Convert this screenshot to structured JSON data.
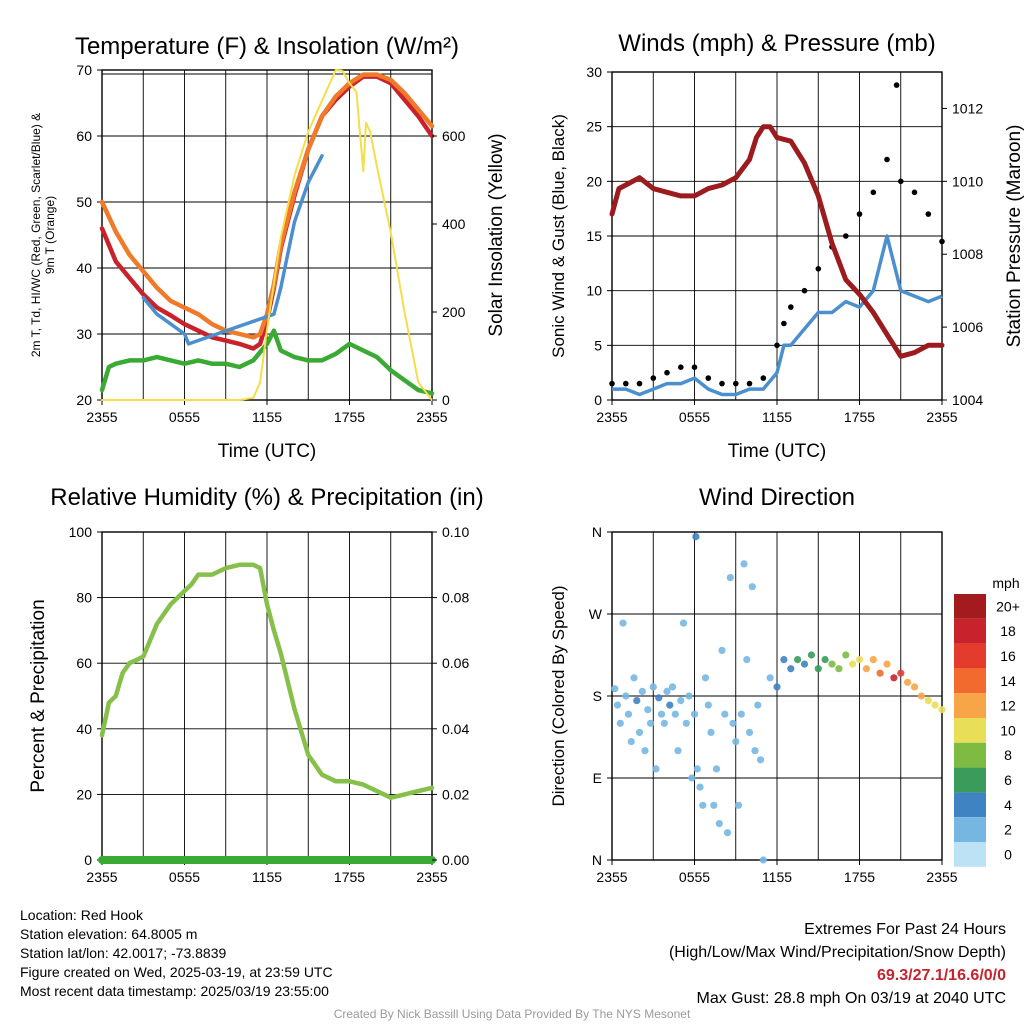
{
  "chart_data": [
    {
      "type": "line",
      "title": "Temperature (F) & Insolation (W/m²)",
      "xlabel": "Time (UTC)",
      "ylabel": "2m T, Td, HI/WC (Red, Green, Scarlet/Blue) & 9m T (Orange)",
      "y2label": "Solar Insolation (Yellow)",
      "x_ticks": [
        "2355",
        "0555",
        "1155",
        "1755",
        "2355"
      ],
      "ylim": [
        20,
        70
      ],
      "y_ticks": [
        "20",
        "30",
        "40",
        "50",
        "60",
        "70"
      ],
      "y2lim": [
        0,
        750
      ],
      "y2_ticks": [
        "0",
        "200",
        "400",
        "600"
      ],
      "x_hours_range": [
        0,
        24
      ],
      "series": [
        {
          "name": "2m T",
          "color": "#c8232c",
          "axis": "left",
          "x": [
            0,
            1,
            2,
            3,
            4,
            5,
            6,
            7,
            8,
            9,
            10,
            11,
            11.5,
            12,
            12.5,
            13,
            14,
            15,
            16,
            17,
            18,
            19,
            20,
            21,
            22,
            23,
            24
          ],
          "y": [
            46,
            41,
            38.5,
            36,
            34,
            32.8,
            31.5,
            30.5,
            29.5,
            29,
            28.5,
            27.8,
            28.5,
            32,
            37,
            43,
            51,
            58,
            63,
            65.5,
            67.5,
            69,
            69,
            68,
            65.5,
            63,
            60
          ]
        },
        {
          "name": "9m T",
          "color": "#f07a2a",
          "axis": "left",
          "x": [
            0,
            1,
            2,
            3,
            4,
            5,
            6,
            7,
            8,
            9,
            10,
            11,
            11.5,
            12,
            12.5,
            13,
            14,
            15,
            16,
            17,
            18,
            19,
            20,
            21,
            22,
            23,
            24
          ],
          "y": [
            50,
            45.5,
            42,
            39.5,
            37,
            35,
            34,
            33,
            31.5,
            30.5,
            30,
            29.5,
            30,
            33,
            37.5,
            43.5,
            51.5,
            58,
            63,
            66,
            68,
            69.3,
            69.3,
            68.5,
            66.5,
            64,
            61.5
          ]
        },
        {
          "name": "Td",
          "color": "#3aaa35",
          "axis": "left",
          "x": [
            0,
            0.5,
            1,
            2,
            3,
            4,
            5,
            6,
            7,
            8,
            9,
            10,
            11,
            12,
            12.5,
            13,
            14,
            15,
            16,
            17,
            18,
            19,
            20,
            21,
            22,
            23,
            24
          ],
          "y": [
            21.5,
            25,
            25.5,
            26,
            26,
            26.5,
            26,
            25.5,
            26,
            25.5,
            25.5,
            25,
            26,
            28.5,
            30.5,
            27.5,
            26.5,
            26,
            26,
            27,
            28.5,
            27.5,
            26.5,
            24.5,
            23,
            21.5,
            21
          ]
        },
        {
          "name": "HI/WC",
          "color": "#4b8fcf",
          "axis": "left",
          "x": [
            3,
            4,
            5,
            6,
            6.3,
            12.5,
            13,
            13.5,
            14,
            15,
            16
          ],
          "y": [
            35.5,
            33,
            31.5,
            30,
            28.5,
            33,
            37,
            42,
            47,
            53,
            57
          ]
        },
        {
          "name": "Solar Insolation",
          "color": "#f5dd4b",
          "axis": "right",
          "x": [
            0,
            10,
            11,
            11.5,
            12,
            13,
            14,
            15,
            16,
            16.5,
            17,
            17.5,
            18,
            18.5,
            19,
            19.2,
            19.5,
            20,
            21,
            22,
            23,
            24
          ],
          "y": [
            0,
            0,
            5,
            40,
            160,
            370,
            510,
            610,
            680,
            715,
            750,
            748,
            720,
            700,
            520,
            630,
            610,
            530,
            380,
            200,
            40,
            0
          ]
        }
      ]
    },
    {
      "type": "line",
      "title": "Winds (mph) & Pressure (mb)",
      "xlabel": "Time (UTC)",
      "ylabel": "Sonic Wind & Gust (Blue, Black)",
      "y2label": "Station Pressure (Maroon)",
      "x_ticks": [
        "2355",
        "0555",
        "1155",
        "1755",
        "2355"
      ],
      "ylim": [
        0,
        30
      ],
      "y_ticks": [
        "0",
        "5",
        "10",
        "15",
        "20",
        "25",
        "30"
      ],
      "y2lim": [
        1004,
        1013
      ],
      "y2_ticks": [
        "1004",
        "1006",
        "1008",
        "1010",
        "1012"
      ],
      "series": [
        {
          "name": "Sonic Wind",
          "color": "#4b8fcf",
          "axis": "left",
          "x": [
            0,
            1,
            2,
            3,
            4,
            5,
            6,
            7,
            8,
            9,
            10,
            11,
            12,
            12.5,
            13,
            14,
            15,
            16,
            17,
            18,
            19,
            20,
            21,
            22,
            23,
            24
          ],
          "y": [
            1,
            1,
            0.5,
            1,
            1.5,
            1.5,
            2,
            1,
            0.5,
            0.5,
            1,
            1,
            2.5,
            5,
            5,
            6.5,
            8,
            8,
            9,
            8.5,
            10,
            15,
            10,
            9.5,
            9,
            9.5
          ]
        },
        {
          "name": "Gust",
          "color": "#000000",
          "axis": "left",
          "x": [
            0,
            1,
            2,
            3,
            4,
            5,
            6,
            7,
            8,
            9,
            10,
            11,
            12,
            12.5,
            13,
            14,
            15,
            16,
            17,
            18,
            19,
            20,
            20.7,
            21,
            22,
            23,
            24
          ],
          "y": [
            1.5,
            1.5,
            1.5,
            2,
            2.5,
            3,
            3,
            2,
            1.5,
            1.5,
            1.5,
            2,
            5,
            7,
            8.5,
            10,
            12,
            14,
            15,
            17,
            19,
            22,
            28.8,
            20,
            19,
            17,
            14.5
          ]
        },
        {
          "name": "Station Pressure",
          "color": "#9b1b1e",
          "axis": "right",
          "x": [
            0,
            0.5,
            1,
            2,
            3,
            4,
            5,
            6,
            7,
            8,
            9,
            10,
            10.5,
            11,
            11.5,
            12,
            13,
            14,
            15,
            16,
            17,
            18,
            19,
            20,
            21,
            22,
            23,
            24
          ],
          "y": [
            1009.1,
            1009.8,
            1009.9,
            1010.1,
            1009.8,
            1009.7,
            1009.6,
            1009.6,
            1009.8,
            1009.9,
            1010.1,
            1010.6,
            1011.2,
            1011.5,
            1011.5,
            1011.2,
            1011.1,
            1010.5,
            1009.6,
            1008.3,
            1007.3,
            1006.9,
            1006.4,
            1005.8,
            1005.2,
            1005.3,
            1005.5,
            1005.5
          ]
        }
      ]
    },
    {
      "type": "line",
      "title": "Relative Humidity (%) & Precipitation (in)",
      "xlabel": "",
      "ylabel": "Percent & Precipitation",
      "x_ticks": [
        "2355",
        "0555",
        "1155",
        "1755",
        "2355"
      ],
      "ylim": [
        0,
        100
      ],
      "y_ticks": [
        "0",
        "20",
        "40",
        "60",
        "80",
        "100"
      ],
      "y2lim": [
        0,
        0.1
      ],
      "y2_ticks": [
        "0.00",
        "0.02",
        "0.04",
        "0.06",
        "0.08",
        "0.10"
      ],
      "series": [
        {
          "name": "Relative Humidity",
          "color": "#86c04a",
          "axis": "left",
          "x": [
            0,
            0.5,
            1,
            1.5,
            2,
            3,
            4,
            5,
            6,
            6.5,
            7,
            8,
            9,
            10,
            11,
            11.5,
            12,
            12.5,
            13,
            14,
            15,
            16,
            17,
            18,
            19,
            20,
            21,
            22,
            23,
            24
          ],
          "y": [
            38,
            48,
            50,
            57,
            60,
            62,
            72,
            78,
            82,
            84,
            87,
            87,
            89,
            90,
            90,
            89,
            78,
            70,
            63,
            46,
            32,
            26,
            24,
            24,
            23,
            21,
            19,
            20,
            21,
            22
          ]
        },
        {
          "name": "Precipitation",
          "color": "#3aaa35",
          "axis": "right",
          "x": [
            0,
            24
          ],
          "y": [
            0,
            0
          ]
        }
      ]
    },
    {
      "type": "scatter",
      "title": "Wind Direction",
      "ylabel": "Direction (Colored By Speed)",
      "x_ticks": [
        "2355",
        "0555",
        "1155",
        "1755",
        "2355"
      ],
      "y_ticks": [
        "N",
        "E",
        "S",
        "W",
        "N"
      ],
      "ylim": [
        0,
        360
      ],
      "legend_title": "mph",
      "legend_labels": [
        "20+",
        "18",
        "16",
        "14",
        "12",
        "10",
        "8",
        "6",
        "4",
        "2",
        "0"
      ],
      "legend_colors": [
        "#a31b1e",
        "#c8232c",
        "#e33c2c",
        "#f26a2e",
        "#f7a546",
        "#e9de58",
        "#7dbb42",
        "#3a9b5a",
        "#3f83c3",
        "#76b7e2",
        "#bde2f6"
      ],
      "legend_placement": "right",
      "points": [
        [
          0.2,
          188,
          2
        ],
        [
          0.4,
          170,
          1
        ],
        [
          0.6,
          150,
          1
        ],
        [
          0.8,
          260,
          1
        ],
        [
          1.0,
          180,
          1
        ],
        [
          1.2,
          160,
          2
        ],
        [
          1.4,
          130,
          1
        ],
        [
          1.6,
          200,
          2
        ],
        [
          1.8,
          175,
          3
        ],
        [
          2.0,
          140,
          1
        ],
        [
          2.2,
          185,
          2
        ],
        [
          2.4,
          120,
          1
        ],
        [
          2.6,
          165,
          2
        ],
        [
          2.8,
          150,
          1
        ],
        [
          3.0,
          190,
          2
        ],
        [
          3.2,
          100,
          1
        ],
        [
          3.4,
          178,
          3
        ],
        [
          3.6,
          160,
          2
        ],
        [
          3.8,
          150,
          1
        ],
        [
          4.0,
          185,
          2
        ],
        [
          4.2,
          170,
          3
        ],
        [
          4.4,
          190,
          2
        ],
        [
          4.6,
          160,
          1
        ],
        [
          4.8,
          120,
          1
        ],
        [
          5.0,
          175,
          2
        ],
        [
          5.2,
          260,
          1
        ],
        [
          5.4,
          150,
          1
        ],
        [
          5.6,
          180,
          2
        ],
        [
          5.8,
          90,
          1
        ],
        [
          6.0,
          160,
          2
        ],
        [
          6.1,
          355,
          3
        ],
        [
          6.2,
          100,
          2
        ],
        [
          6.4,
          80,
          2
        ],
        [
          6.6,
          60,
          1
        ],
        [
          6.8,
          200,
          1
        ],
        [
          7.0,
          170,
          1
        ],
        [
          7.2,
          140,
          2
        ],
        [
          7.4,
          60,
          1
        ],
        [
          7.6,
          100,
          1
        ],
        [
          7.8,
          40,
          1
        ],
        [
          8.0,
          230,
          1
        ],
        [
          8.2,
          160,
          1
        ],
        [
          8.4,
          30,
          1
        ],
        [
          8.6,
          310,
          1
        ],
        [
          8.8,
          150,
          1
        ],
        [
          9.0,
          130,
          2
        ],
        [
          9.2,
          60,
          1
        ],
        [
          9.4,
          160,
          2
        ],
        [
          9.6,
          325,
          1
        ],
        [
          9.8,
          220,
          1
        ],
        [
          10.0,
          140,
          2
        ],
        [
          10.2,
          300,
          1
        ],
        [
          10.4,
          120,
          2
        ],
        [
          10.6,
          170,
          1
        ],
        [
          10.8,
          110,
          1
        ],
        [
          11.0,
          0,
          1
        ],
        [
          11.5,
          200,
          2
        ],
        [
          12.0,
          190,
          3
        ],
        [
          12.5,
          220,
          4
        ],
        [
          13.0,
          210,
          4
        ],
        [
          13.5,
          220,
          5
        ],
        [
          14.0,
          215,
          4
        ],
        [
          14.5,
          225,
          6
        ],
        [
          15.0,
          210,
          5
        ],
        [
          15.5,
          220,
          6
        ],
        [
          16.0,
          215,
          7
        ],
        [
          16.5,
          210,
          7
        ],
        [
          17.0,
          225,
          8
        ],
        [
          17.5,
          215,
          9
        ],
        [
          18.0,
          220,
          10
        ],
        [
          18.5,
          210,
          11
        ],
        [
          19.0,
          220,
          12
        ],
        [
          19.5,
          205,
          13
        ],
        [
          20.0,
          215,
          12
        ],
        [
          20.5,
          200,
          17
        ],
        [
          21.0,
          205,
          15
        ],
        [
          21.5,
          195,
          12
        ],
        [
          22.0,
          190,
          11
        ],
        [
          22.5,
          180,
          12
        ],
        [
          23.0,
          175,
          10
        ],
        [
          23.5,
          170,
          9
        ],
        [
          24.0,
          165,
          9
        ]
      ]
    }
  ],
  "footer": {
    "location": "Location: Red Hook",
    "elevation": "Station elevation: 64.8005 m",
    "latlon": "Station lat/lon: 42.0017; -73.8839",
    "created": "Figure created on Wed, 2025-03-19, at 23:59 UTC",
    "recent": "Most recent data timestamp: 2025/03/19 23:55:00",
    "extremes_title": "Extremes For Past 24 Hours",
    "extremes_labels": "(High/Low/Max Wind/Precipitation/Snow Depth)",
    "extremes_values": "69.3/27.1/16.6/0/0",
    "max_gust": "Max Gust: 28.8 mph On 03/19 at 2040 UTC",
    "credit": "Created By Nick Bassill Using Data Provided By The NYS Mesonet"
  },
  "colors": {
    "temp": "#c8232c",
    "temp9m": "#f07a2a",
    "dew": "#3aaa35",
    "wc": "#4b8fcf",
    "solar": "#f5dd4b",
    "wind": "#4b8fcf",
    "gust": "#000000",
    "pressure": "#9b1b1e",
    "rh": "#86c04a",
    "precip": "#3aaa35"
  }
}
